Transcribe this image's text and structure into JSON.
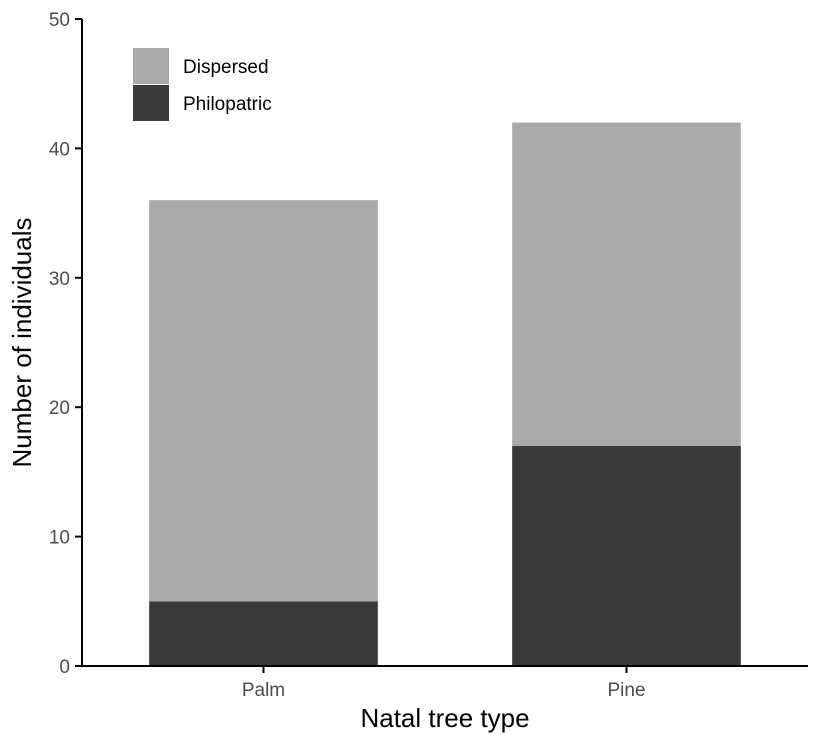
{
  "chart_data": {
    "type": "bar",
    "stacked": true,
    "title": "",
    "xlabel": "Natal tree type",
    "ylabel": "Number of individuals",
    "ylim": [
      0,
      50
    ],
    "yticks": [
      0,
      10,
      20,
      30,
      40,
      50
    ],
    "grid": false,
    "legend_position": "top-left",
    "categories": [
      "Palm",
      "Pine"
    ],
    "series": [
      {
        "name": "Philopatric",
        "values": [
          5,
          17
        ],
        "color": "#3a3a3a"
      },
      {
        "name": "Dispersed",
        "values": [
          31,
          25
        ],
        "color": "#aaaaaa"
      }
    ],
    "legend": [
      {
        "name": "Dispersed",
        "color": "#aaaaaa"
      },
      {
        "name": "Philopatric",
        "color": "#3a3a3a"
      }
    ]
  }
}
